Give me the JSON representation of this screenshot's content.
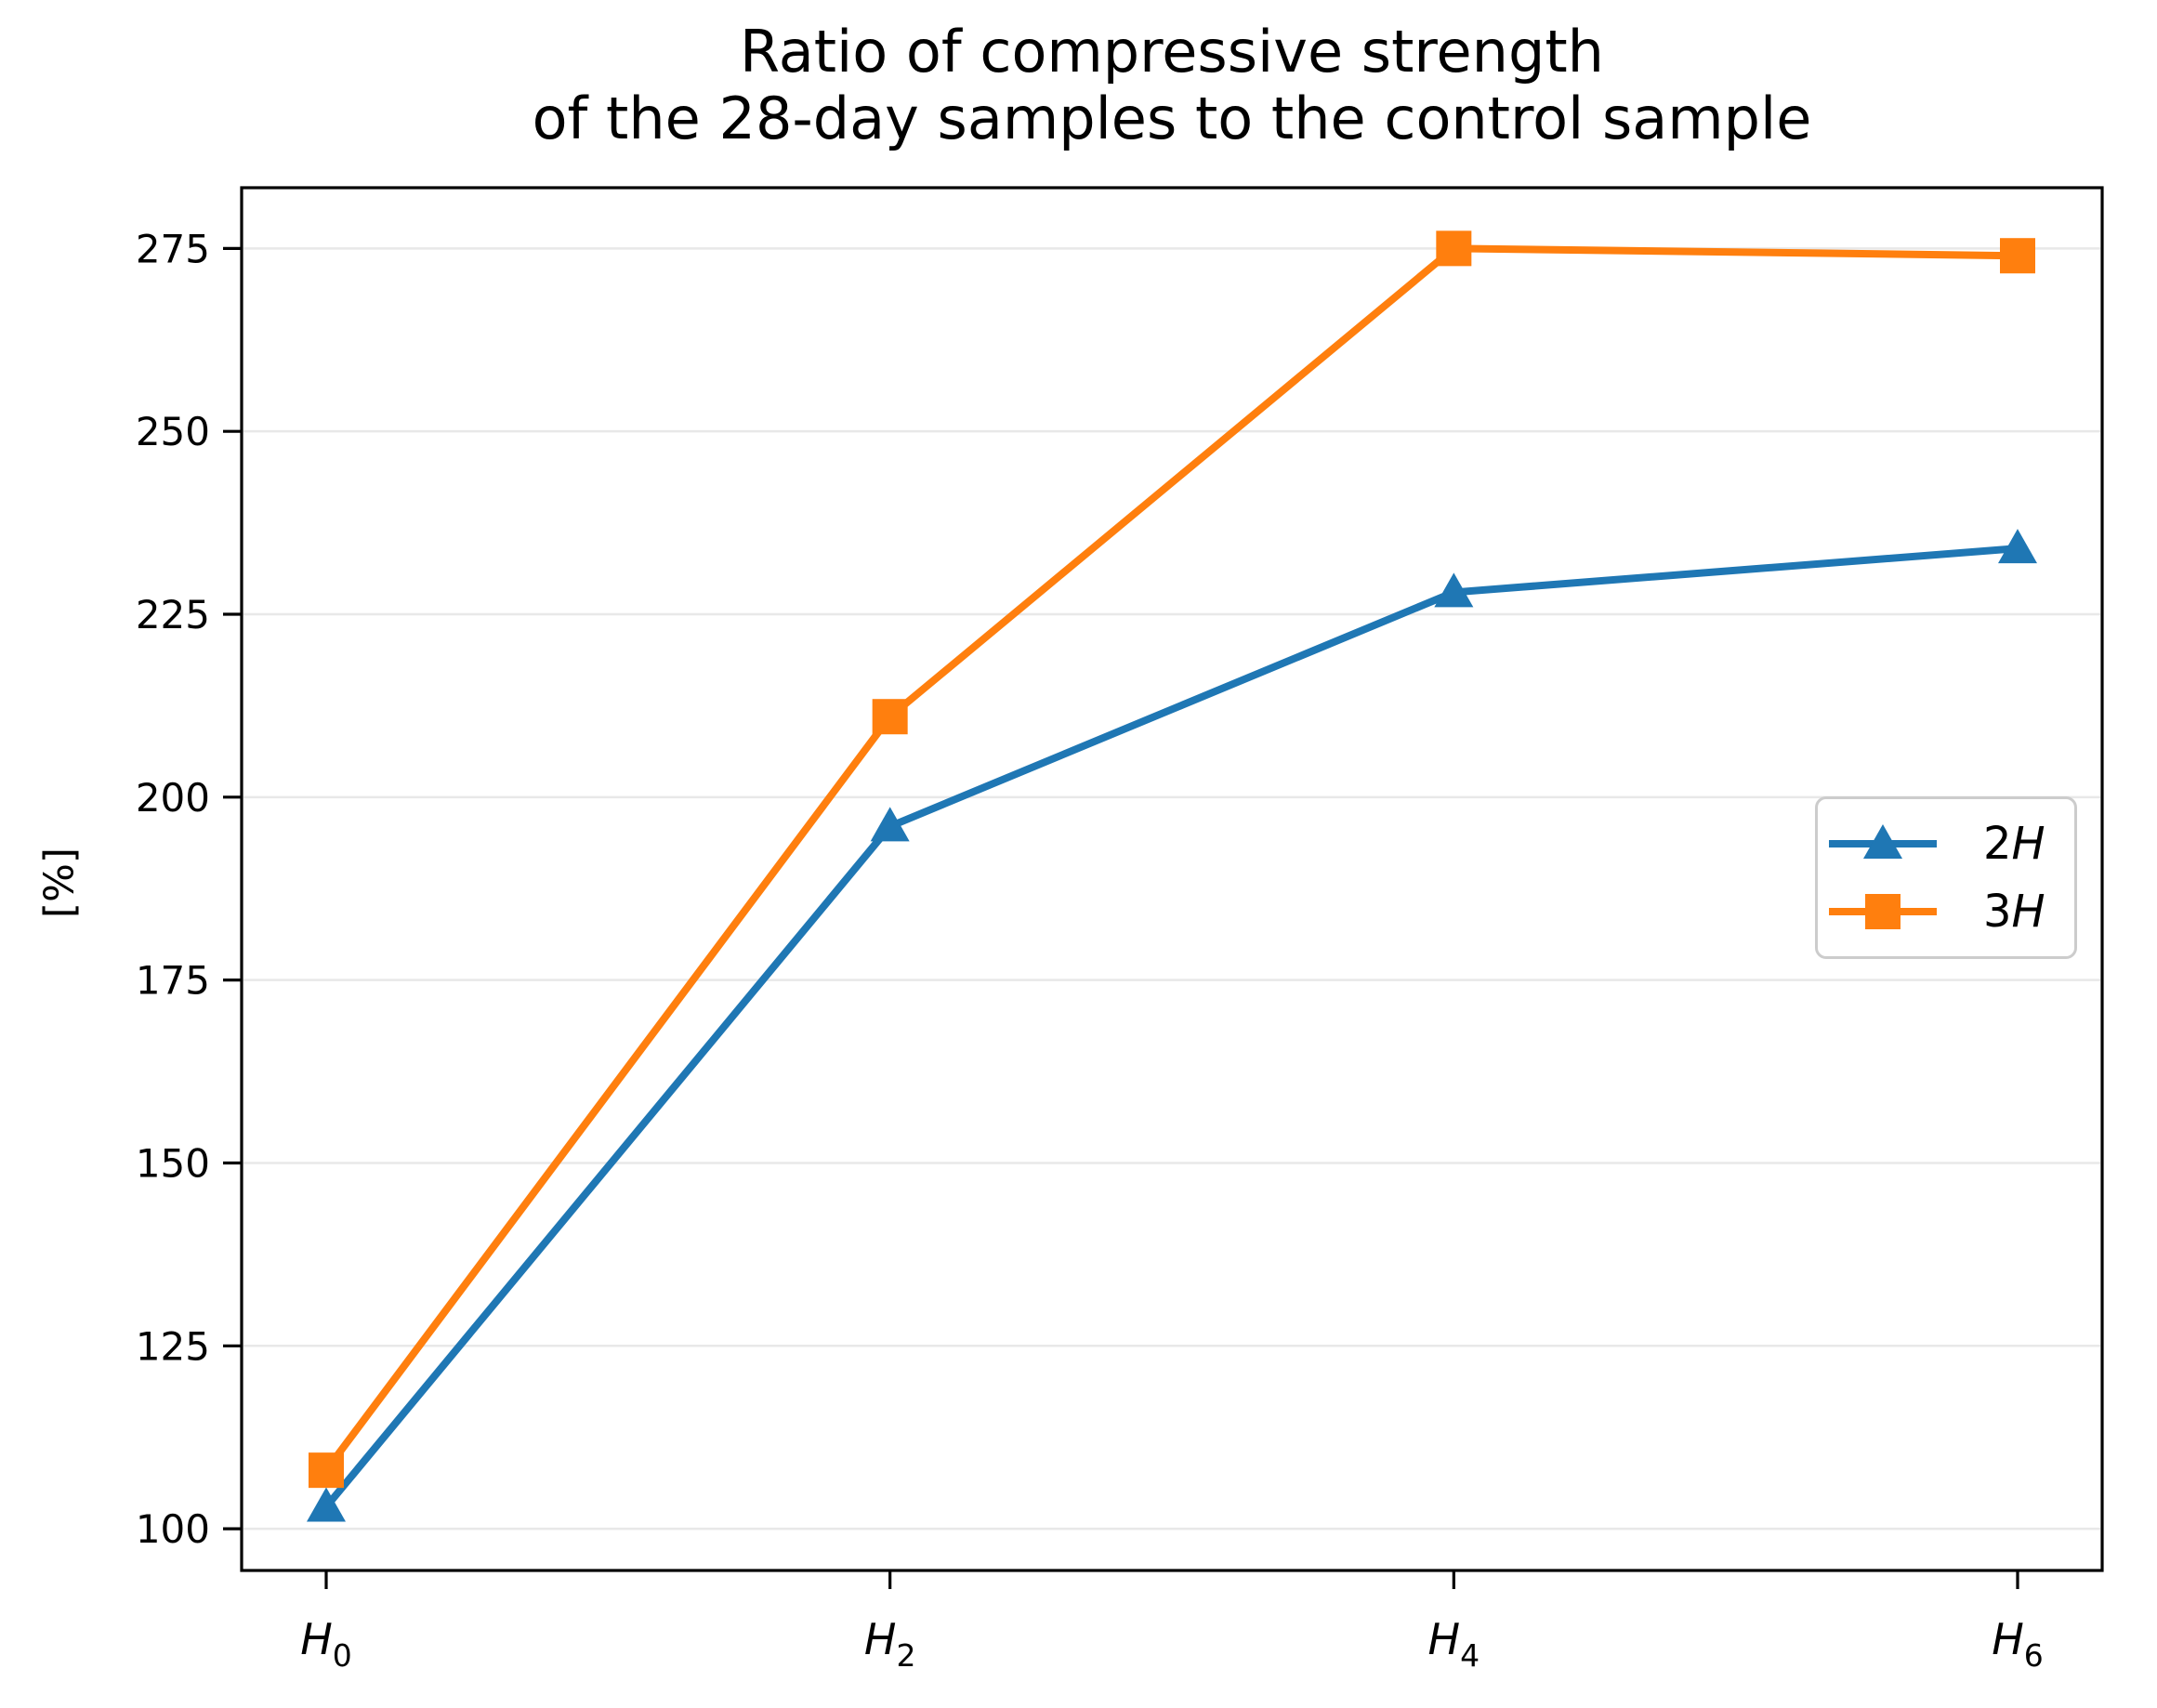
{
  "title": {
    "line1": "Ratio of compressive strength",
    "line2": "of the 28-day samples to the control sample"
  },
  "axes": {
    "ylabel": "[%]",
    "x_tick_labels": [
      {
        "base": "H",
        "sub": "0"
      },
      {
        "base": "H",
        "sub": "2"
      },
      {
        "base": "H",
        "sub": "4"
      },
      {
        "base": "H",
        "sub": "6"
      }
    ]
  },
  "legend": {
    "position": "center right",
    "items": [
      {
        "num": "2",
        "var": "H",
        "series": "2H"
      },
      {
        "num": "3",
        "var": "H",
        "series": "3H"
      }
    ]
  },
  "chart_data": {
    "type": "line",
    "title": "Ratio of compressive strength\nof the 28-day samples to the control sample",
    "categories": [
      "H0",
      "H2",
      "H4",
      "H6"
    ],
    "series": [
      {
        "name": "2H",
        "values": [
          103,
          196,
          228,
          234
        ],
        "color": "#1f77b4",
        "marker": "triangle"
      },
      {
        "name": "3H",
        "values": [
          108,
          211,
          275,
          274
        ],
        "color": "#ff7f0e",
        "marker": "square"
      }
    ],
    "xlabel": "",
    "ylabel": "[%]",
    "yticks": [
      100,
      125,
      150,
      175,
      200,
      225,
      250,
      275
    ],
    "ylim": [
      94.3,
      283.3
    ],
    "grid": "y",
    "legend_position": "center right"
  },
  "colors": {
    "grid": "#e8e8e8",
    "spine": "#000000",
    "legend_border": "#cccccc",
    "background": "#ffffff"
  }
}
